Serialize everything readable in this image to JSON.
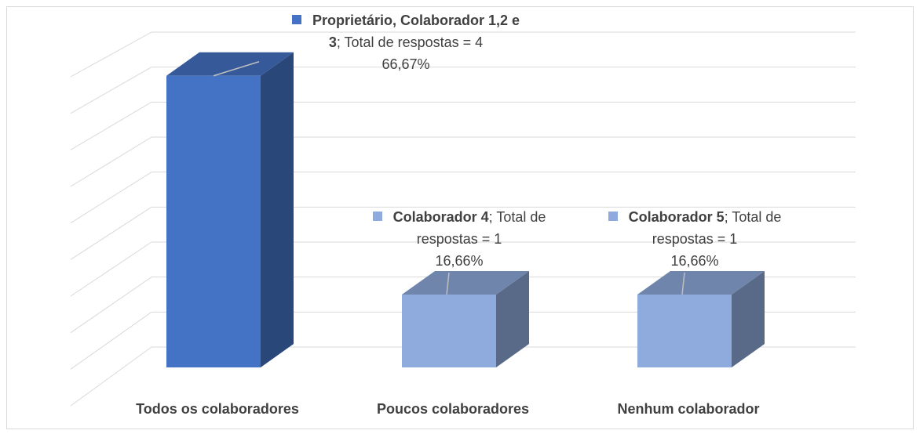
{
  "chart_data": {
    "type": "bar3d",
    "categories": [
      "Todos os colaboradores",
      "Poucos colaboradores",
      "Nenhum colaborador"
    ],
    "values": [
      66.67,
      16.66,
      16.66
    ],
    "value_labels": [
      "66,67%",
      "16,66%",
      "16,66%"
    ],
    "data_labels": [
      {
        "name": "Proprietário, Colaborador 1,2 e 3",
        "text": "; Total de respostas = 4"
      },
      {
        "name": "Colaborador 4",
        "text": "; Total de respostas = 1"
      },
      {
        "name": "Colaborador 5",
        "text": "; Total de respostas = 1"
      }
    ],
    "colors": [
      "#4472c4",
      "#8faadc",
      "#8faadc"
    ],
    "ylim": [
      0,
      72
    ],
    "yticks": [
      0,
      8,
      16,
      24,
      32,
      40,
      48,
      56,
      64,
      72
    ],
    "grid": true
  }
}
